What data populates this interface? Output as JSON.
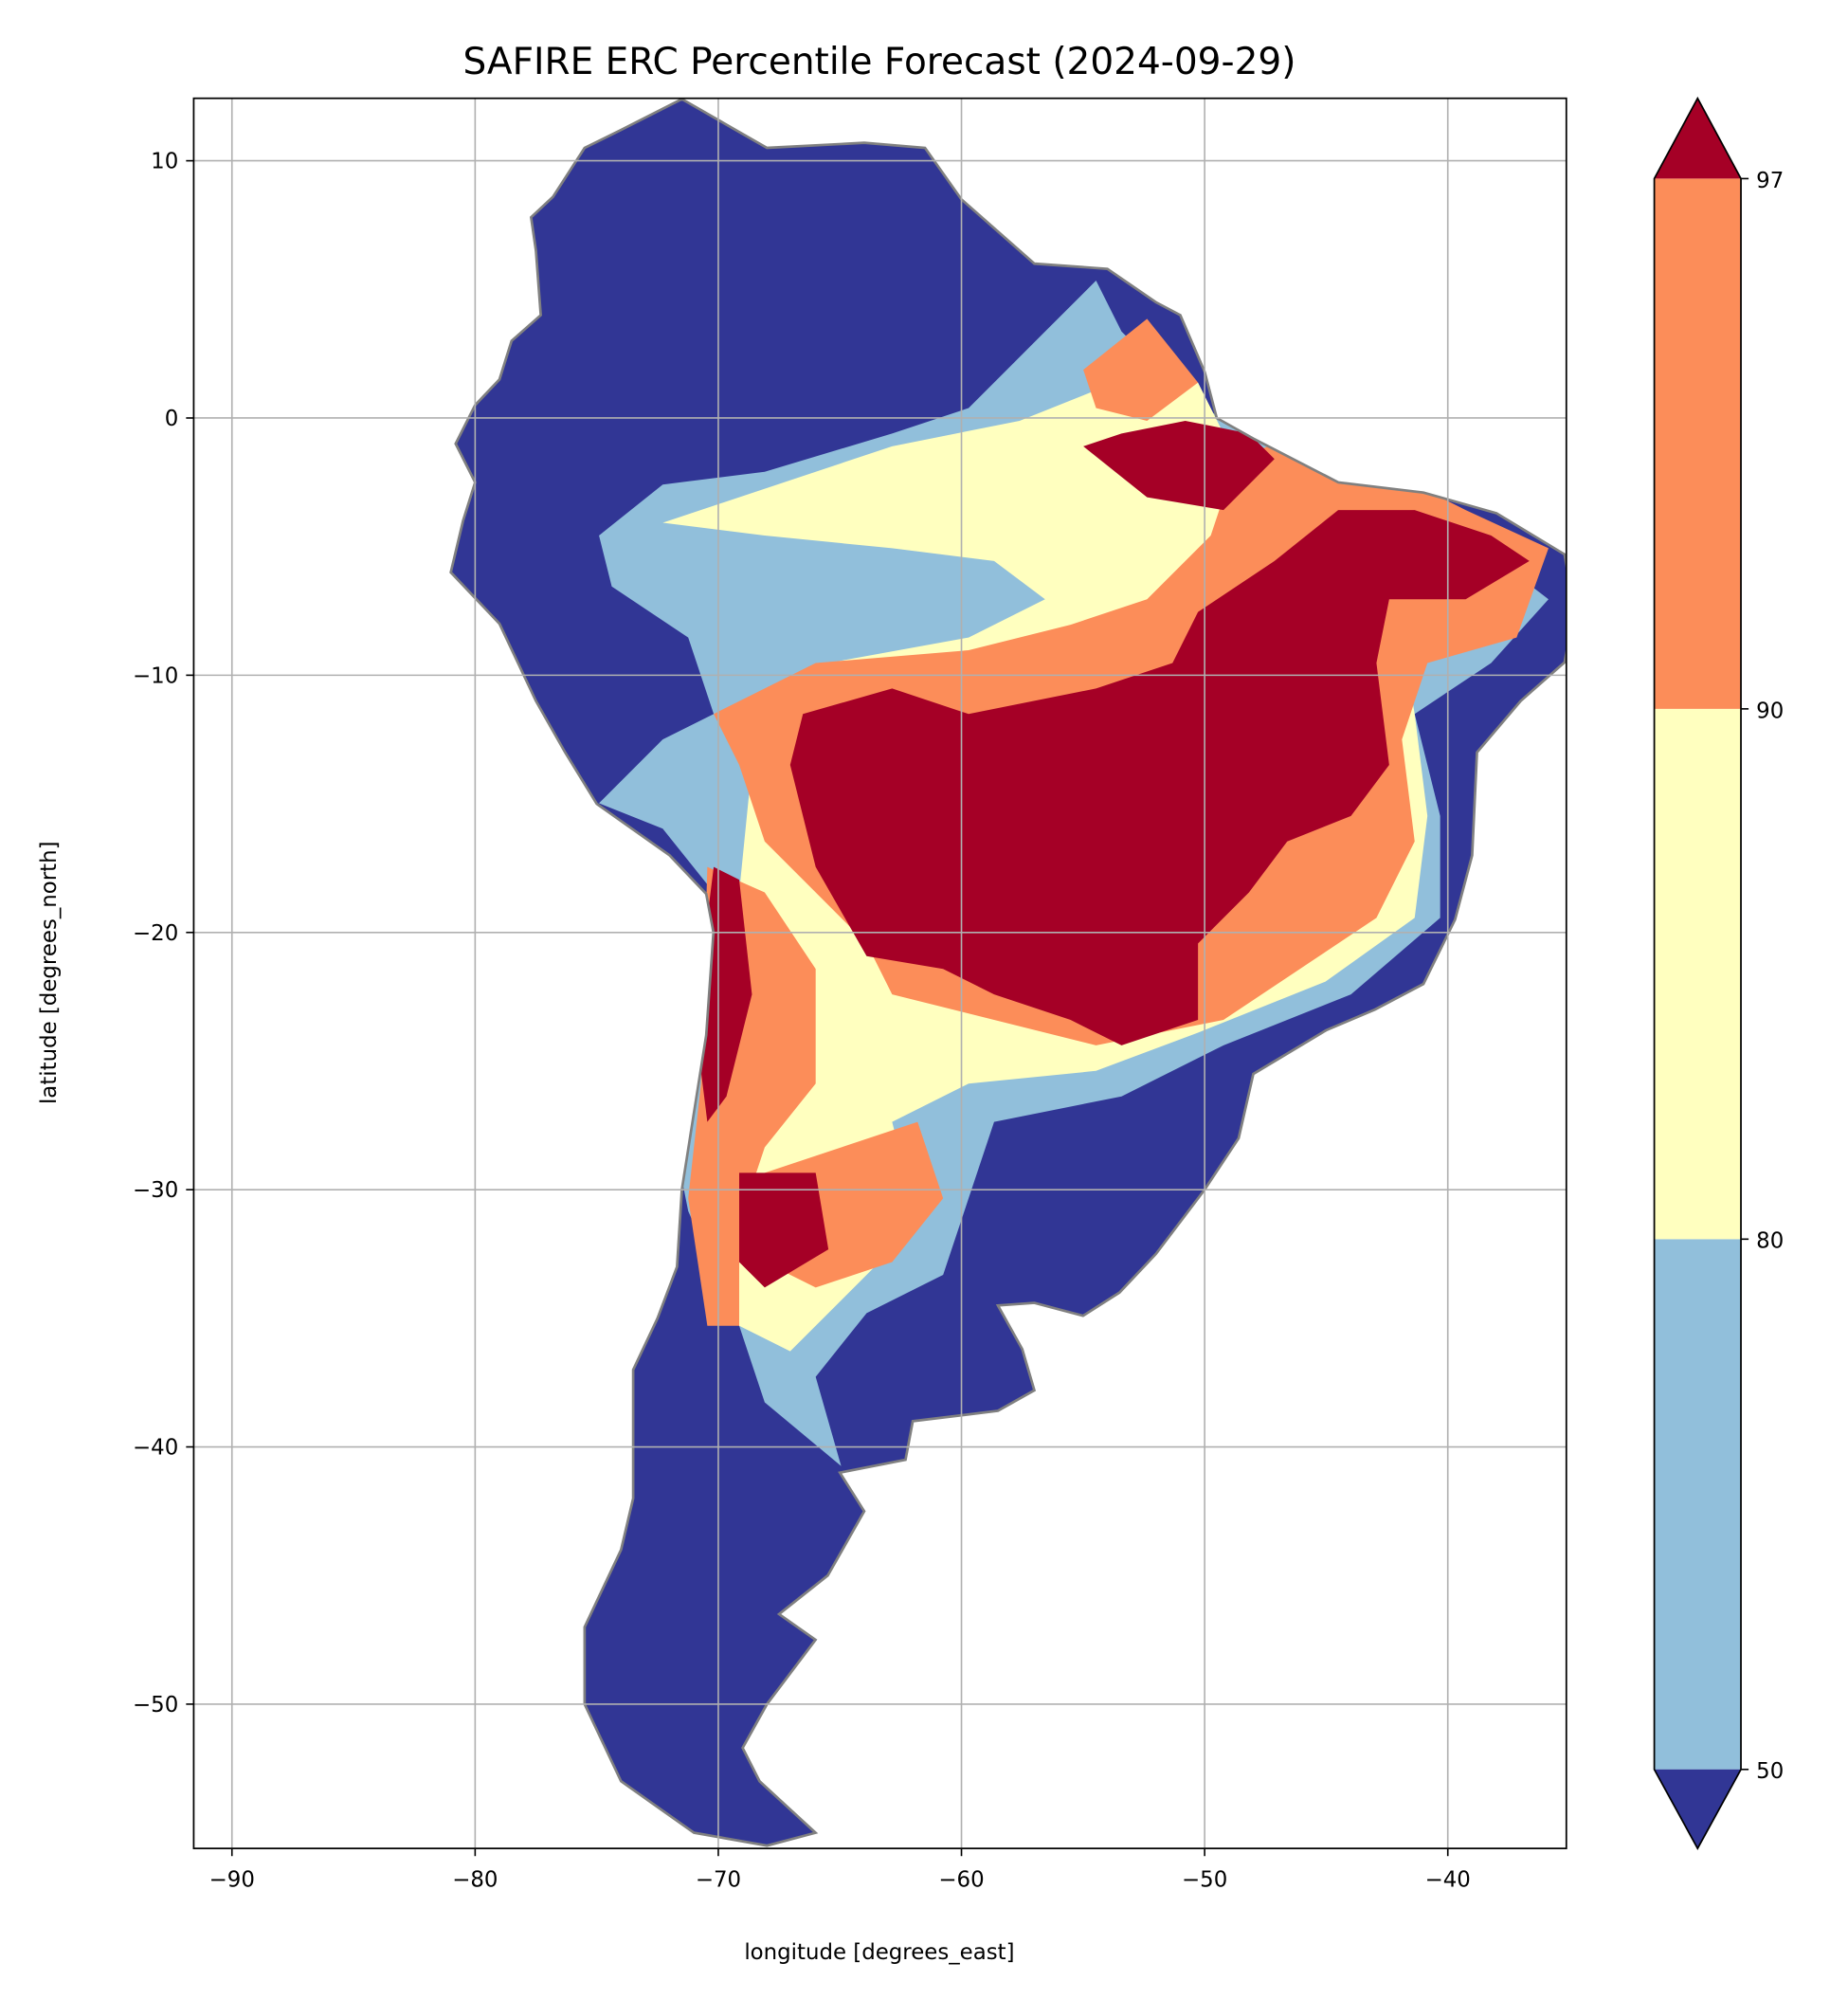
{
  "chart_data": {
    "type": "heatmap",
    "title": "SAFIRE ERC Percentile Forecast (2024-09-29)",
    "xlabel": "longitude [degrees_east]",
    "ylabel": "latitude [degrees_north]",
    "xlim": [
      -91.6,
      -35.1
    ],
    "ylim": [
      -55.6,
      12.4
    ],
    "xticks": [
      -90,
      -80,
      -70,
      -60,
      -50,
      -40
    ],
    "xtick_labels": [
      "−90",
      "−80",
      "−70",
      "−60",
      "−50",
      "−40"
    ],
    "yticks": [
      10,
      0,
      -10,
      -20,
      -30,
      -40,
      -50
    ],
    "ytick_labels": [
      "10",
      "0",
      "−10",
      "−20",
      "−30",
      "−40",
      "−50"
    ],
    "grid": true,
    "colorbar": {
      "boundaries": [
        50,
        80,
        90,
        97
      ],
      "tick_labels": [
        "50",
        "80",
        "90",
        "97"
      ],
      "extend": "both",
      "colors": {
        "below_50": "#313695",
        "50_80": "#91bfdb",
        "80_90": "#ffffbf",
        "90_97": "#fc8d59",
        "above_97": "#a50026"
      }
    },
    "border_color": "#808080"
  }
}
